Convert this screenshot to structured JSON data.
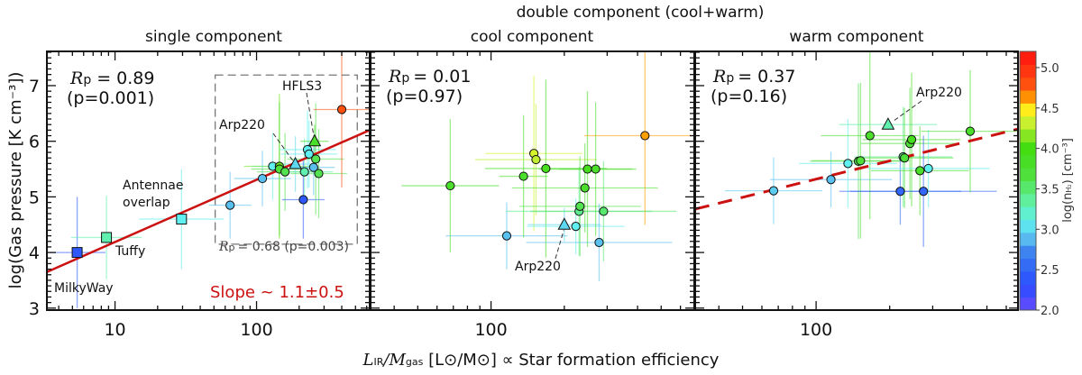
{
  "chart_data": {
    "type": "scatter",
    "supertitle": "double component  (cool+warm)",
    "xlabel": {
      "main": "L",
      "sub1": "IR",
      "mid": "/M",
      "sub2": "gas",
      "rest": " [L⊙/M⊙] ∝ Star formation efficiency"
    },
    "ylabel": "log(Gas pressure [K cm⁻³])",
    "ylim": [
      2.96,
      7.62
    ],
    "yticks": [
      "3",
      "4",
      "5",
      "6",
      "7"
    ],
    "xscale": "log",
    "colorbar": {
      "label": "log(n",
      "label_sub": "H₂",
      "label_rest": ") [cm⁻³]",
      "range": [
        2.0,
        5.2
      ],
      "ticks": [
        "2.0",
        "2.5",
        "3.0",
        "3.5",
        "4.0",
        "4.5",
        "5.0"
      ]
    },
    "panels": [
      {
        "title": "single component",
        "xlim": [
          3.3,
          630
        ],
        "xticks": [
          "10",
          "100"
        ],
        "stats": {
          "r": "R",
          "sub": "p",
          "value": "= 0.89",
          "pval": "(p=0.001)"
        },
        "box_stats": {
          "r": "R",
          "sub": "p",
          "value": "= 0.68 (p=0.003)"
        },
        "box": {
          "x": [
            51,
            515
          ],
          "y": [
            4.15,
            7.19
          ]
        },
        "fit": {
          "x": [
            3.3,
            630
          ],
          "y": [
            3.65,
            6.2
          ],
          "style": "solid",
          "color": "#cc1111"
        },
        "slope_text": "Slope ~ 1.1±0.5",
        "labels": {
          "hfls3": "HFLS3",
          "arp220": "Arp220",
          "antennae1": "Antennae",
          "antennae2": "overlap",
          "tuffy": "Tuffy",
          "milkyway": "MilkyWay"
        },
        "points": [
          {
            "x": 5.4,
            "y": 4.0,
            "n": 2.4,
            "m": "s",
            "xe": 0.2,
            "ye": 1.0
          },
          {
            "x": 8.7,
            "y": 4.27,
            "n": 3.3,
            "m": "s",
            "xe": 0.25,
            "ye": 0.75
          },
          {
            "x": 29.5,
            "y": 4.6,
            "n": 3.1,
            "m": "s",
            "xe": 0.3,
            "ye": 0.9
          },
          {
            "x": 65,
            "y": 4.85,
            "n": 2.9,
            "m": "o",
            "xe": 0.15,
            "ye": 0.6
          },
          {
            "x": 110,
            "y": 5.33,
            "n": 2.9,
            "m": "o",
            "xe": 0.2,
            "ye": 0.5
          },
          {
            "x": 130,
            "y": 5.55,
            "n": 3.1,
            "m": "o",
            "xe": 0.15,
            "ye": 0.6
          },
          {
            "x": 145,
            "y": 5.55,
            "n": 4.1,
            "m": "o",
            "xe": 0.25,
            "ye": 1.3
          },
          {
            "x": 145,
            "y": 5.5,
            "n": 3.7,
            "m": "o",
            "xe": 0.2,
            "ye": 1.2
          },
          {
            "x": 159,
            "y": 5.45,
            "n": 3.6,
            "m": "o",
            "xe": 0.2,
            "ye": 0.7
          },
          {
            "x": 188,
            "y": 5.59,
            "n": 3.0,
            "m": "t",
            "xe": 0.15,
            "ye": 0.5
          },
          {
            "x": 218,
            "y": 5.45,
            "n": 3.3,
            "m": "o",
            "xe": 0.2,
            "ye": 0.6
          },
          {
            "x": 214,
            "y": 4.95,
            "n": 2.4,
            "m": "o",
            "xe": 0.15,
            "ye": 0.7
          },
          {
            "x": 229,
            "y": 5.85,
            "n": 3.1,
            "m": "o",
            "xe": 0.2,
            "ye": 0.7
          },
          {
            "x": 235,
            "y": 5.77,
            "n": 3.1,
            "m": "o",
            "xe": 0.2,
            "ye": 0.6
          },
          {
            "x": 257,
            "y": 6.0,
            "n": 3.8,
            "m": "t",
            "xe": 0.1,
            "ye": 0.3
          },
          {
            "x": 253,
            "y": 5.53,
            "n": 2.9,
            "m": "o",
            "xe": 0.15,
            "ye": 0.5
          },
          {
            "x": 262,
            "y": 5.68,
            "n": 3.6,
            "m": "o",
            "xe": 0.2,
            "ye": 1.0
          },
          {
            "x": 275,
            "y": 5.42,
            "n": 3.6,
            "m": "o",
            "xe": 0.2,
            "ye": 0.8
          },
          {
            "x": 400,
            "y": 6.57,
            "n": 4.8,
            "m": "o",
            "xe": 0.2,
            "ye": 1.4
          }
        ]
      },
      {
        "title": "cool component",
        "xlim": [
          32,
          684
        ],
        "xticks": [
          "100"
        ],
        "stats": {
          "r": "R",
          "sub": "p",
          "value": "= 0.01",
          "pval": "(p=0.97)"
        },
        "labels": {
          "arp220": "Arp220"
        },
        "points": [
          {
            "x": 68,
            "y": 5.2,
            "n": 3.8,
            "m": "o",
            "xe": 0.2,
            "ye": 1.2
          },
          {
            "x": 116,
            "y": 4.3,
            "n": 2.9,
            "m": "o",
            "xe": 0.25,
            "ye": 0.6
          },
          {
            "x": 136,
            "y": 5.37,
            "n": 3.8,
            "m": "o",
            "xe": 0.1,
            "ye": 1.1
          },
          {
            "x": 150,
            "y": 5.78,
            "n": 4.35,
            "m": "o",
            "xe": 0.2,
            "ye": 1.4
          },
          {
            "x": 153,
            "y": 5.67,
            "n": 4.3,
            "m": "o",
            "xe": 0.25,
            "ye": 1.0
          },
          {
            "x": 168,
            "y": 5.51,
            "n": 3.9,
            "m": "o",
            "xe": 0.25,
            "ye": 1.6
          },
          {
            "x": 200,
            "y": 4.5,
            "n": 3.0,
            "m": "t",
            "xe": 0.15,
            "ye": 0.3
          },
          {
            "x": 223,
            "y": 4.47,
            "n": 3.1,
            "m": "o",
            "xe": 0.2,
            "ye": 0.5
          },
          {
            "x": 230,
            "y": 4.74,
            "n": 3.4,
            "m": "o",
            "xe": 0.3,
            "ye": 0.8
          },
          {
            "x": 232,
            "y": 4.83,
            "n": 3.6,
            "m": "o",
            "xe": 0.25,
            "ye": 0.9
          },
          {
            "x": 243,
            "y": 5.16,
            "n": 3.8,
            "m": "o",
            "xe": 0.3,
            "ye": 0.8
          },
          {
            "x": 249,
            "y": 5.5,
            "n": 3.9,
            "m": "o",
            "xe": 0.2,
            "ye": 1.4
          },
          {
            "x": 269,
            "y": 5.5,
            "n": 3.8,
            "m": "o",
            "xe": 0.15,
            "ye": 1.2
          },
          {
            "x": 278,
            "y": 4.18,
            "n": 2.9,
            "m": "o",
            "xe": 0.3,
            "ye": 0.7
          },
          {
            "x": 290,
            "y": 4.74,
            "n": 3.5,
            "m": "o",
            "xe": 0.3,
            "ye": 0.9
          },
          {
            "x": 429,
            "y": 6.1,
            "n": 4.6,
            "m": "o",
            "xe": 0.25,
            "ye": 1.6
          }
        ]
      },
      {
        "title": "warm component",
        "xlim": [
          32,
          670
        ],
        "xticks": [
          "100"
        ],
        "stats": {
          "r": "R",
          "sub": "p",
          "value": "= 0.37",
          "pval": "(p=0.16)"
        },
        "fit": {
          "x": [
            32,
            670
          ],
          "y": [
            4.78,
            6.22
          ],
          "style": "dashed",
          "color": "#cc1111"
        },
        "labels": {
          "arp220": "Arp220"
        },
        "points": [
          {
            "x": 67,
            "y": 5.11,
            "n": 2.95,
            "m": "o",
            "xe": 0.2,
            "ye": 0.6
          },
          {
            "x": 115,
            "y": 5.31,
            "n": 2.9,
            "m": "o",
            "xe": 0.25,
            "ye": 0.5
          },
          {
            "x": 135,
            "y": 5.6,
            "n": 3.1,
            "m": "o",
            "xe": 0.2,
            "ye": 0.8
          },
          {
            "x": 149,
            "y": 5.64,
            "n": 3.6,
            "m": "o",
            "xe": 0.2,
            "ye": 1.4
          },
          {
            "x": 152,
            "y": 5.65,
            "n": 3.7,
            "m": "o",
            "xe": 0.2,
            "ye": 1.4
          },
          {
            "x": 166,
            "y": 6.1,
            "n": 3.8,
            "m": "o",
            "xe": 0.2,
            "ye": 1.5
          },
          {
            "x": 197,
            "y": 6.3,
            "n": 3.3,
            "m": "t",
            "xe": 0.2,
            "ye": 0.1
          },
          {
            "x": 221,
            "y": 5.1,
            "n": 2.5,
            "m": "o",
            "xe": 0.25,
            "ye": 0.6
          },
          {
            "x": 227,
            "y": 5.72,
            "n": 3.4,
            "m": "o",
            "xe": 0.2,
            "ye": 0.9
          },
          {
            "x": 230,
            "y": 5.7,
            "n": 3.7,
            "m": "o",
            "xe": 0.2,
            "ye": 0.9
          },
          {
            "x": 242,
            "y": 5.96,
            "n": 3.7,
            "m": "o",
            "xe": 0.2,
            "ye": 1.0
          },
          {
            "x": 246,
            "y": 6.03,
            "n": 3.9,
            "m": "o",
            "xe": 0.2,
            "ye": 1.2
          },
          {
            "x": 266,
            "y": 5.47,
            "n": 3.8,
            "m": "o",
            "xe": 0.2,
            "ye": 0.8
          },
          {
            "x": 275,
            "y": 5.1,
            "n": 2.5,
            "m": "o",
            "xe": 0.3,
            "ye": 1.0
          },
          {
            "x": 288,
            "y": 5.51,
            "n": 3.1,
            "m": "o",
            "xe": 0.25,
            "ye": 0.7
          },
          {
            "x": 427,
            "y": 6.18,
            "n": 3.8,
            "m": "o",
            "xe": 0.2,
            "ye": 1.1
          }
        ]
      }
    ]
  }
}
